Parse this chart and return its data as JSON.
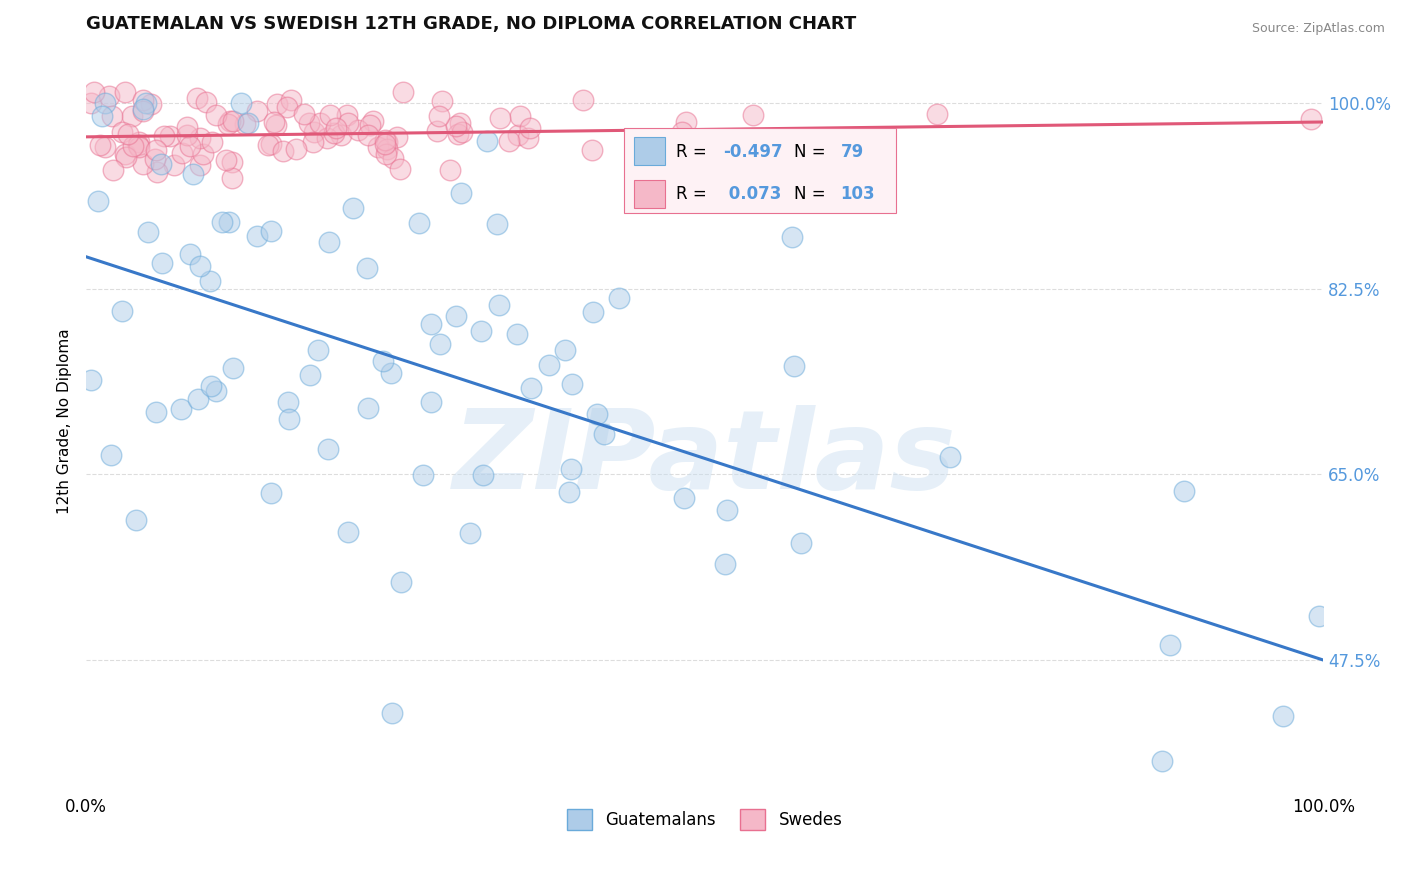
{
  "title": "GUATEMALAN VS SWEDISH 12TH GRADE, NO DIPLOMA CORRELATION CHART",
  "source_text": "Source: ZipAtlas.com",
  "ylabel": "12th Grade, No Diploma",
  "xlim": [
    0.0,
    1.0
  ],
  "ylim": [
    0.35,
    1.05
  ],
  "yticks": [
    0.475,
    0.65,
    0.825,
    1.0
  ],
  "ytick_labels": [
    "47.5%",
    "65.0%",
    "82.5%",
    "100.0%"
  ],
  "xticks": [
    0.0,
    1.0
  ],
  "xtick_labels": [
    "0.0%",
    "100.0%"
  ],
  "guatemalan_color": "#aecce8",
  "guatemalan_edge_color": "#6aaada",
  "swedish_color": "#f5b8c8",
  "swedish_edge_color": "#e87090",
  "trend_guatemalan_color": "#3878c8",
  "trend_swedish_color": "#e05878",
  "trend_guat_x0": 0.0,
  "trend_guat_y0": 0.855,
  "trend_guat_x1": 1.0,
  "trend_guat_y1": 0.475,
  "trend_swed_x0": 0.0,
  "trend_swed_y0": 0.968,
  "trend_swed_x1": 1.0,
  "trend_swed_y1": 0.982,
  "R_guatemalan": -0.497,
  "N_guatemalan": 79,
  "R_swedish": 0.073,
  "N_swedish": 103,
  "watermark_color": "#c8ddf0",
  "watermark_alpha": 0.45,
  "tick_color": "#5599dd",
  "grid_color": "#dddddd",
  "seed": 12345
}
